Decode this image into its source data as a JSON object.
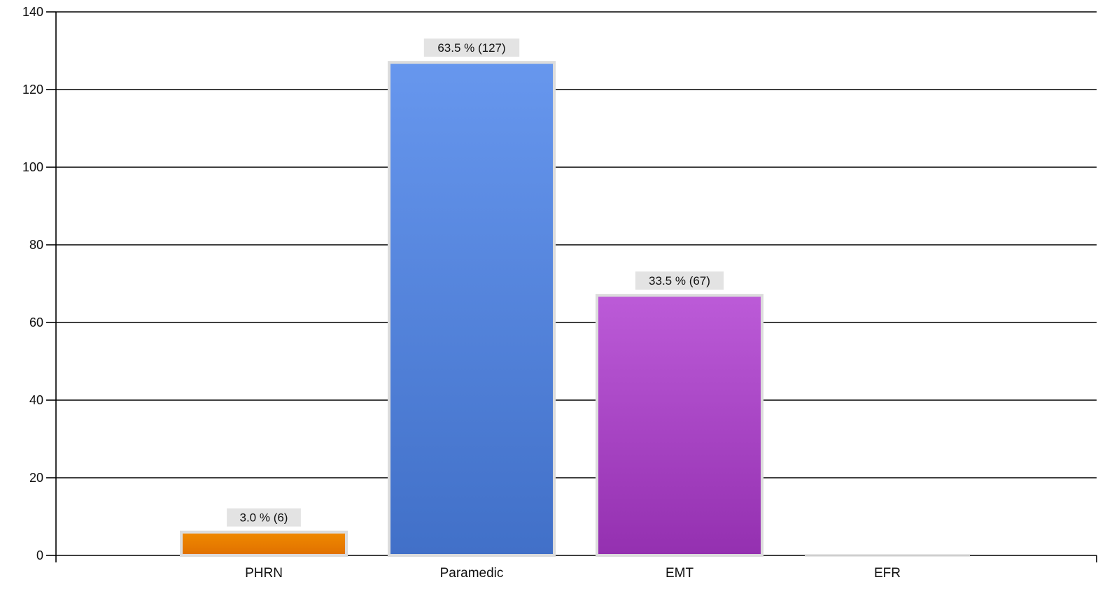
{
  "chart_data": {
    "type": "bar",
    "categories": [
      "PHRN",
      "Paramedic",
      "EMT",
      "EFR"
    ],
    "values": [
      6,
      127,
      67,
      0
    ],
    "data_labels": [
      "3.0 % (6)",
      "63.5 % (127)",
      "33.5 % (67)",
      ""
    ],
    "colors": [
      [
        "#f08a00",
        "#e07000"
      ],
      [
        "#6797ee",
        "#4170c8"
      ],
      [
        "#bc5bd8",
        "#9430b0"
      ],
      [
        "#d0d0d0",
        "#b0b0b0"
      ]
    ],
    "ylim": [
      0,
      140
    ],
    "yticks": [
      0,
      20,
      40,
      60,
      80,
      100,
      120,
      140
    ],
    "title": "",
    "xlabel": "",
    "ylabel": "",
    "grid": true,
    "legend": "none"
  }
}
